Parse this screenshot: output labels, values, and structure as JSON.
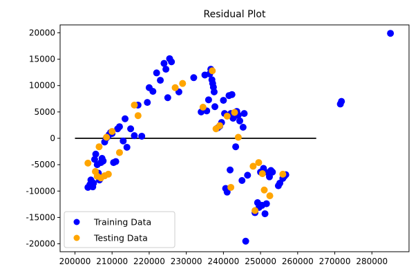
{
  "chart_data": {
    "type": "scatter",
    "title": "Residual Plot",
    "xlabel": "",
    "ylabel": "",
    "xlim": [
      196000,
      290000
    ],
    "ylim": [
      -21500,
      21500
    ],
    "x_ticks": [
      200000,
      210000,
      220000,
      230000,
      240000,
      250000,
      260000,
      270000,
      280000
    ],
    "y_ticks": [
      -20000,
      -15000,
      -10000,
      -5000,
      0,
      5000,
      10000,
      15000,
      20000
    ],
    "hline": {
      "y": 0,
      "xmin": 200000,
      "xmax": 265000,
      "color": "#000000"
    },
    "legend_position": "lower-left",
    "series": [
      {
        "name": "Training Data",
        "color": "#0000ff",
        "points": [
          [
            203500,
            -9300
          ],
          [
            204000,
            -8800
          ],
          [
            204300,
            -7900
          ],
          [
            204800,
            -9200
          ],
          [
            205000,
            -8500
          ],
          [
            205300,
            -4000
          ],
          [
            205600,
            -3000
          ],
          [
            206000,
            -5000
          ],
          [
            206300,
            -6600
          ],
          [
            206600,
            -7900
          ],
          [
            207000,
            -4600
          ],
          [
            207300,
            -3800
          ],
          [
            207600,
            -4300
          ],
          [
            208000,
            -700
          ],
          [
            208400,
            0
          ],
          [
            208800,
            300
          ],
          [
            209200,
            700
          ],
          [
            209600,
            1100
          ],
          [
            210000,
            900
          ],
          [
            210400,
            -4600
          ],
          [
            211000,
            -4400
          ],
          [
            211500,
            1800
          ],
          [
            212000,
            2200
          ],
          [
            213000,
            -500
          ],
          [
            213500,
            3700
          ],
          [
            214000,
            -1700
          ],
          [
            215000,
            1800
          ],
          [
            216000,
            500
          ],
          [
            217000,
            6300
          ],
          [
            218000,
            400
          ],
          [
            219500,
            6800
          ],
          [
            220000,
            9600
          ],
          [
            221000,
            8900
          ],
          [
            222000,
            12400
          ],
          [
            223000,
            11000
          ],
          [
            224000,
            14200
          ],
          [
            224500,
            13100
          ],
          [
            225000,
            7700
          ],
          [
            225500,
            15100
          ],
          [
            226000,
            14500
          ],
          [
            228000,
            8800
          ],
          [
            232000,
            11500
          ],
          [
            234000,
            5000
          ],
          [
            235000,
            12000
          ],
          [
            235500,
            5200
          ],
          [
            236000,
            7300
          ],
          [
            236300,
            12200
          ],
          [
            236600,
            13100
          ],
          [
            236900,
            11100
          ],
          [
            237100,
            10400
          ],
          [
            237300,
            9700
          ],
          [
            237500,
            8800
          ],
          [
            237700,
            6000
          ],
          [
            238500,
            2000
          ],
          [
            239000,
            2300
          ],
          [
            239500,
            3000
          ],
          [
            240000,
            7200
          ],
          [
            240300,
            4700
          ],
          [
            240600,
            -9500
          ],
          [
            241000,
            -10200
          ],
          [
            241500,
            8100
          ],
          [
            241800,
            -6000
          ],
          [
            242000,
            4700
          ],
          [
            242300,
            8300
          ],
          [
            242600,
            3800
          ],
          [
            243000,
            4200
          ],
          [
            243300,
            -1600
          ],
          [
            243600,
            5100
          ],
          [
            244000,
            4400
          ],
          [
            244400,
            3300
          ],
          [
            245000,
            -8000
          ],
          [
            245300,
            2100
          ],
          [
            245600,
            4700
          ],
          [
            246000,
            -19500
          ],
          [
            246500,
            -7000
          ],
          [
            248500,
            -14100
          ],
          [
            249200,
            -12200
          ],
          [
            249600,
            -13100
          ],
          [
            250000,
            -6400
          ],
          [
            250400,
            -12700
          ],
          [
            250800,
            -5700
          ],
          [
            251200,
            -14300
          ],
          [
            251600,
            -12400
          ],
          [
            252000,
            -6500
          ],
          [
            252400,
            -7300
          ],
          [
            252800,
            -6100
          ],
          [
            253200,
            -6400
          ],
          [
            254800,
            -9000
          ],
          [
            255200,
            -8500
          ],
          [
            256000,
            -7600
          ],
          [
            256400,
            -7200
          ],
          [
            256800,
            -6900
          ],
          [
            271500,
            6500
          ],
          [
            271800,
            7000
          ],
          [
            285000,
            19900
          ]
        ]
      },
      {
        "name": "Testing Data",
        "color": "#ffa500",
        "points": [
          [
            203500,
            -4700
          ],
          [
            205500,
            -6300
          ],
          [
            206000,
            -7200
          ],
          [
            206500,
            -1600
          ],
          [
            207000,
            -7500
          ],
          [
            208000,
            -7100
          ],
          [
            208500,
            200
          ],
          [
            209000,
            -6800
          ],
          [
            210000,
            1300
          ],
          [
            212000,
            -2700
          ],
          [
            216000,
            6300
          ],
          [
            217000,
            4300
          ],
          [
            227000,
            9600
          ],
          [
            229000,
            10400
          ],
          [
            234500,
            5900
          ],
          [
            237000,
            12800
          ],
          [
            238000,
            1800
          ],
          [
            239000,
            2400
          ],
          [
            241000,
            4200
          ],
          [
            242000,
            -9300
          ],
          [
            243000,
            4900
          ],
          [
            244000,
            200
          ],
          [
            248000,
            -5300
          ],
          [
            248500,
            -13700
          ],
          [
            249500,
            -4600
          ],
          [
            250500,
            -6700
          ],
          [
            251000,
            -9800
          ],
          [
            252500,
            -10900
          ],
          [
            256000,
            -6800
          ]
        ]
      }
    ]
  }
}
